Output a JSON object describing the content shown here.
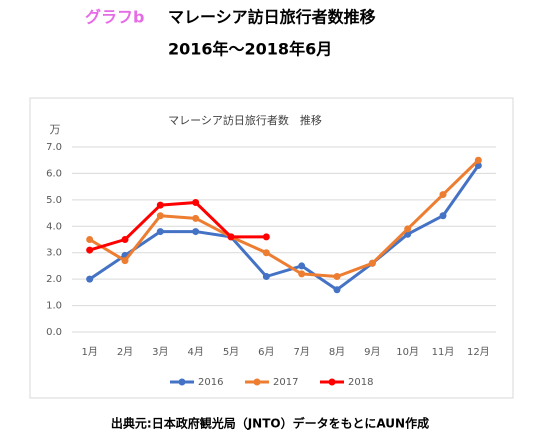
{
  "header": {
    "tag": "グラフb",
    "title": "マレーシア訪日旅行者数推移",
    "subtitle": "2016年～2018年6月"
  },
  "chart_data": {
    "type": "line",
    "title": "マレーシア訪日旅行者数　推移",
    "ylabel": "万",
    "categories": [
      "1月",
      "2月",
      "3月",
      "4月",
      "5月",
      "6月",
      "7月",
      "8月",
      "9月",
      "10月",
      "11月",
      "12月"
    ],
    "series": [
      {
        "name": "2016",
        "color": "#4472c4",
        "values": [
          2.0,
          2.9,
          3.8,
          3.8,
          3.6,
          2.1,
          2.5,
          1.6,
          2.6,
          3.7,
          4.4,
          6.3
        ]
      },
      {
        "name": "2017",
        "color": "#ed7d31",
        "values": [
          3.5,
          2.7,
          4.4,
          4.3,
          3.6,
          3.0,
          2.2,
          2.1,
          2.6,
          3.9,
          5.2,
          6.5
        ]
      },
      {
        "name": "2018",
        "color": "#ff0000",
        "values": [
          3.1,
          3.5,
          4.8,
          4.9,
          3.6,
          3.6,
          null,
          null,
          null,
          null,
          null,
          null
        ]
      }
    ],
    "ylim": [
      0,
      7
    ],
    "yticks": [
      {
        "value": 0,
        "label": "0.0"
      },
      {
        "value": 1,
        "label": "1.0"
      },
      {
        "value": 2,
        "label": "2.0"
      },
      {
        "value": 3,
        "label": "3.0"
      },
      {
        "value": 4,
        "label": "4.0"
      },
      {
        "value": 5,
        "label": "5.0"
      },
      {
        "value": 6,
        "label": "6.0"
      },
      {
        "value": 7,
        "label": "7.0"
      }
    ],
    "grid": true,
    "legend": "bottom"
  },
  "footer": "出典元:日本政府観光局（JNTO）データをもとにAUN作成"
}
